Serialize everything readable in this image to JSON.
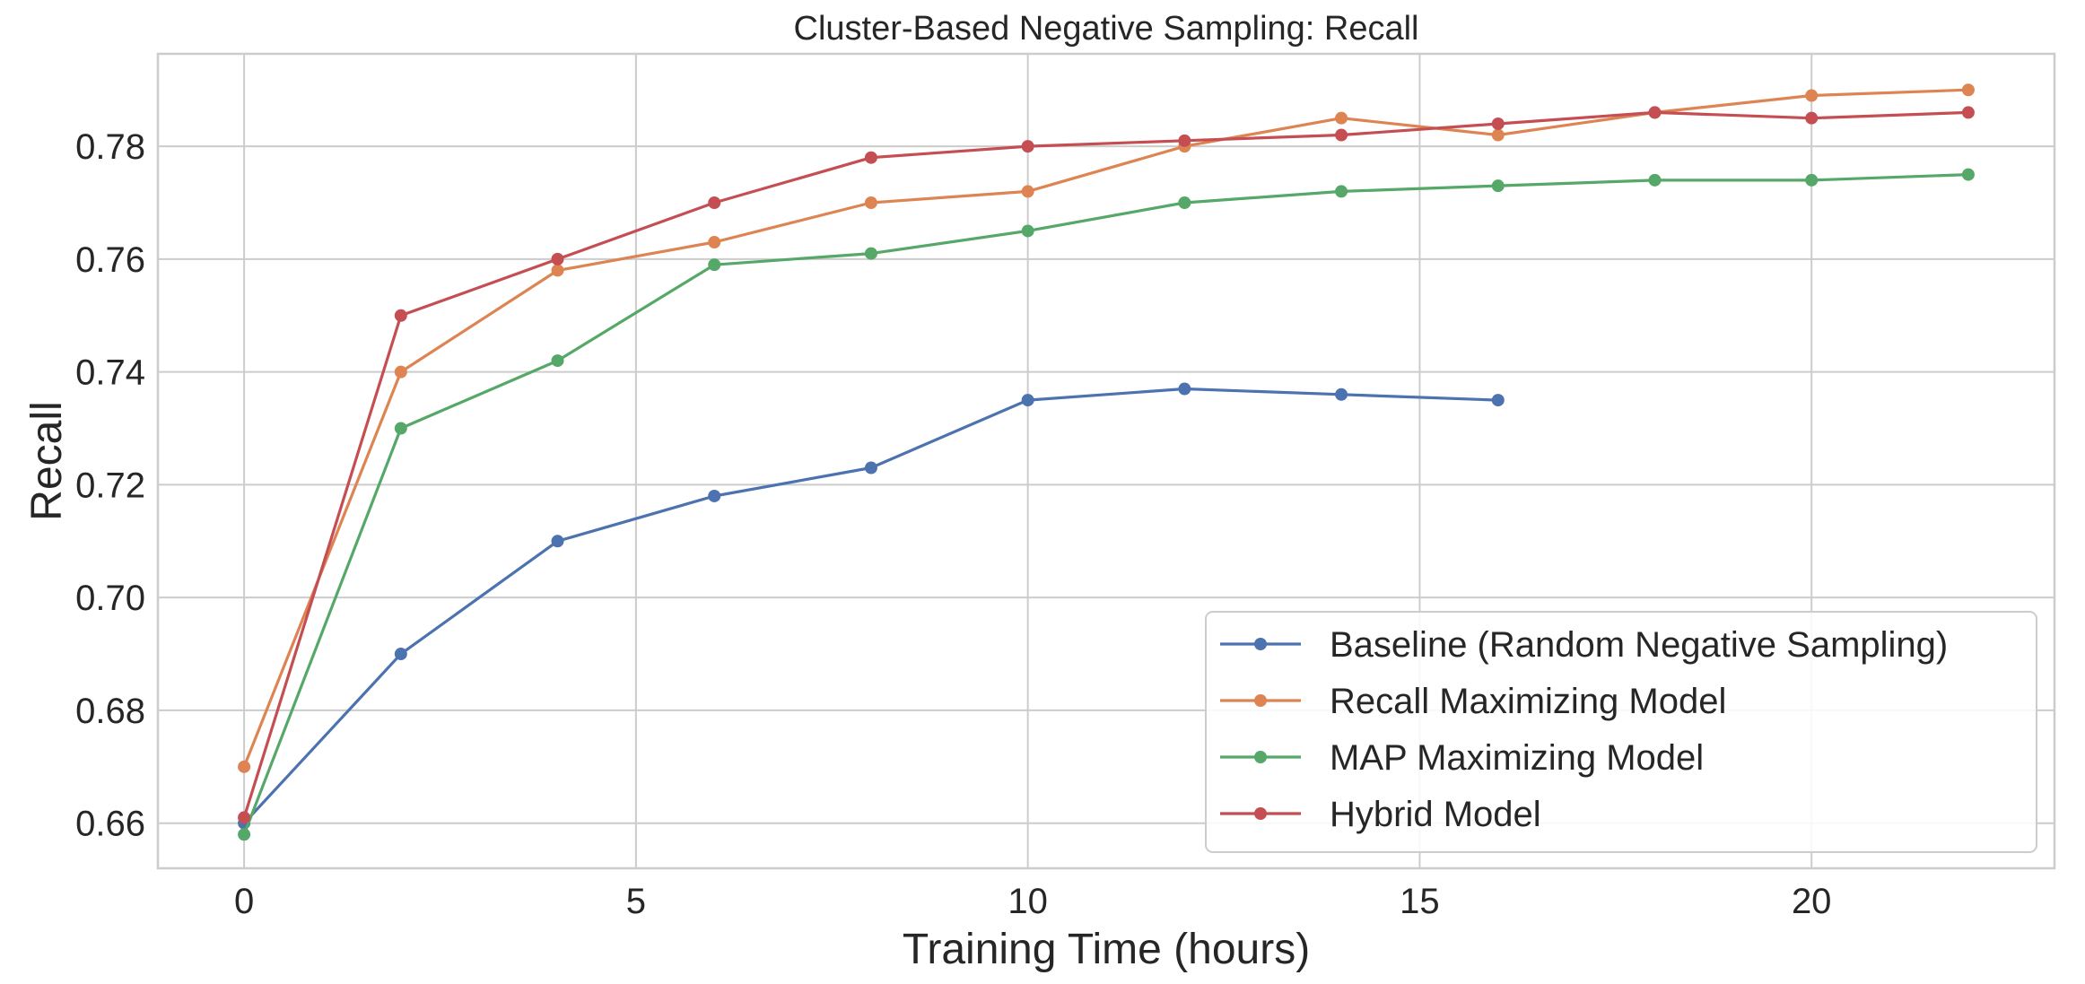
{
  "chart_data": {
    "type": "line",
    "title": "Cluster-Based Negative Sampling: Recall",
    "xlabel": "Training Time (hours)",
    "ylabel": "Recall",
    "xlim": [
      -1.1,
      23.1
    ],
    "ylim": [
      0.652,
      0.7964
    ],
    "x_ticks": [
      0,
      5,
      10,
      15,
      20
    ],
    "y_ticks": [
      0.66,
      0.68,
      0.7,
      0.72,
      0.74,
      0.76,
      0.78
    ],
    "y_tick_labels": [
      "0.66",
      "0.68",
      "0.70",
      "0.72",
      "0.74",
      "0.76",
      "0.78"
    ],
    "grid": true,
    "legend_position": "lower-right",
    "series": [
      {
        "name": "Baseline (Random Negative Sampling)",
        "color": "#4c72b0",
        "x": [
          0,
          2,
          4,
          6,
          8,
          10,
          12,
          14,
          16
        ],
        "y": [
          0.66,
          0.69,
          0.71,
          0.718,
          0.723,
          0.735,
          0.737,
          0.736,
          0.735
        ]
      },
      {
        "name": "Recall Maximizing Model",
        "color": "#dd8452",
        "x": [
          0,
          2,
          4,
          6,
          8,
          10,
          12,
          14,
          16,
          18,
          20,
          22
        ],
        "y": [
          0.67,
          0.74,
          0.758,
          0.763,
          0.77,
          0.772,
          0.78,
          0.785,
          0.782,
          0.786,
          0.789,
          0.79
        ]
      },
      {
        "name": "MAP Maximizing Model",
        "color": "#55a868",
        "x": [
          0,
          2,
          4,
          6,
          8,
          10,
          12,
          14,
          16,
          18,
          20,
          22
        ],
        "y": [
          0.658,
          0.73,
          0.742,
          0.759,
          0.761,
          0.765,
          0.77,
          0.772,
          0.773,
          0.774,
          0.774,
          0.775
        ]
      },
      {
        "name": "Hybrid Model",
        "color": "#c44e52",
        "x": [
          0,
          2,
          4,
          6,
          8,
          10,
          12,
          14,
          16,
          18,
          20,
          22
        ],
        "y": [
          0.661,
          0.75,
          0.76,
          0.77,
          0.778,
          0.78,
          0.781,
          0.782,
          0.784,
          0.786,
          0.785,
          0.786
        ]
      }
    ]
  }
}
